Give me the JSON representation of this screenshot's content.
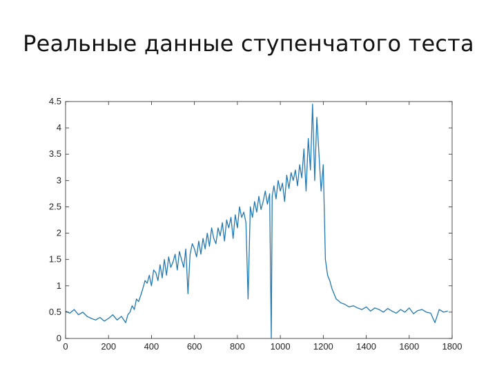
{
  "slide": {
    "title": "Реальные данные ступенчатого теста"
  },
  "chart_data": {
    "type": "line",
    "title": "",
    "xlabel": "",
    "ylabel": "",
    "xlim": [
      0,
      1800
    ],
    "ylim": [
      0,
      4.5
    ],
    "grid": false,
    "x_ticks": [
      0,
      200,
      400,
      600,
      800,
      1000,
      1200,
      1400,
      1600,
      1800
    ],
    "x_tick_labels": [
      "0",
      "200",
      "400",
      "600",
      "800",
      "1000",
      "1200",
      "1400",
      "1600",
      "1800"
    ],
    "y_ticks": [
      0,
      0.5,
      1,
      1.5,
      2,
      2.5,
      3,
      3.5,
      4,
      4.5
    ],
    "y_tick_labels": [
      "0",
      "0.5",
      "1",
      "1.5",
      "2",
      "2.5",
      "3",
      "3.5",
      "4",
      "4.5"
    ],
    "series": [
      {
        "color": "#1f77b4",
        "x": [
          0,
          20,
          40,
          60,
          80,
          100,
          120,
          140,
          160,
          180,
          200,
          220,
          240,
          260,
          280,
          290,
          300,
          310,
          320,
          330,
          340,
          350,
          360,
          370,
          380,
          390,
          400,
          410,
          420,
          430,
          440,
          450,
          460,
          470,
          480,
          490,
          500,
          510,
          520,
          530,
          540,
          550,
          560,
          570,
          580,
          590,
          600,
          610,
          620,
          630,
          640,
          650,
          660,
          670,
          680,
          690,
          700,
          710,
          720,
          730,
          740,
          750,
          760,
          770,
          780,
          790,
          800,
          810,
          820,
          830,
          840,
          850,
          860,
          870,
          880,
          890,
          900,
          910,
          920,
          930,
          940,
          950,
          958,
          962,
          970,
          980,
          990,
          1000,
          1010,
          1020,
          1030,
          1040,
          1050,
          1060,
          1070,
          1080,
          1090,
          1100,
          1110,
          1120,
          1130,
          1140,
          1150,
          1160,
          1170,
          1180,
          1190,
          1200,
          1210,
          1220,
          1230,
          1240,
          1250,
          1260,
          1270,
          1280,
          1300,
          1320,
          1340,
          1360,
          1380,
          1400,
          1420,
          1440,
          1460,
          1480,
          1500,
          1520,
          1540,
          1560,
          1580,
          1600,
          1620,
          1640,
          1660,
          1680,
          1700,
          1720,
          1740,
          1760,
          1780
        ],
        "y": [
          0.52,
          0.48,
          0.55,
          0.45,
          0.5,
          0.42,
          0.38,
          0.35,
          0.4,
          0.33,
          0.38,
          0.45,
          0.35,
          0.42,
          0.3,
          0.45,
          0.5,
          0.62,
          0.55,
          0.75,
          0.7,
          0.82,
          0.95,
          1.1,
          1.05,
          1.2,
          1.0,
          1.3,
          1.25,
          1.1,
          1.4,
          1.15,
          1.5,
          1.2,
          1.55,
          1.35,
          1.45,
          1.6,
          1.3,
          1.65,
          1.5,
          1.35,
          1.7,
          0.85,
          1.6,
          1.8,
          1.7,
          1.55,
          1.85,
          1.6,
          1.9,
          1.7,
          2.0,
          1.75,
          2.1,
          1.9,
          1.8,
          2.1,
          1.95,
          2.2,
          1.85,
          2.25,
          2.1,
          2.3,
          1.9,
          2.35,
          2.1,
          2.5,
          2.3,
          2.4,
          2.2,
          0.75,
          2.5,
          2.3,
          2.6,
          2.4,
          2.7,
          2.45,
          2.6,
          2.8,
          2.55,
          2.75,
          0.0,
          2.7,
          2.9,
          2.65,
          3.0,
          2.8,
          2.95,
          2.6,
          3.1,
          2.85,
          3.15,
          3.0,
          3.2,
          2.9,
          3.3,
          3.05,
          3.6,
          2.8,
          3.8,
          3.2,
          4.45,
          3.0,
          4.2,
          3.5,
          2.8,
          3.3,
          1.5,
          1.2,
          1.1,
          0.95,
          0.85,
          0.75,
          0.72,
          0.68,
          0.65,
          0.6,
          0.62,
          0.58,
          0.55,
          0.6,
          0.52,
          0.58,
          0.55,
          0.5,
          0.57,
          0.52,
          0.48,
          0.55,
          0.5,
          0.58,
          0.47,
          0.53,
          0.55,
          0.5,
          0.48,
          0.3,
          0.55,
          0.5,
          0.52
        ]
      }
    ]
  }
}
